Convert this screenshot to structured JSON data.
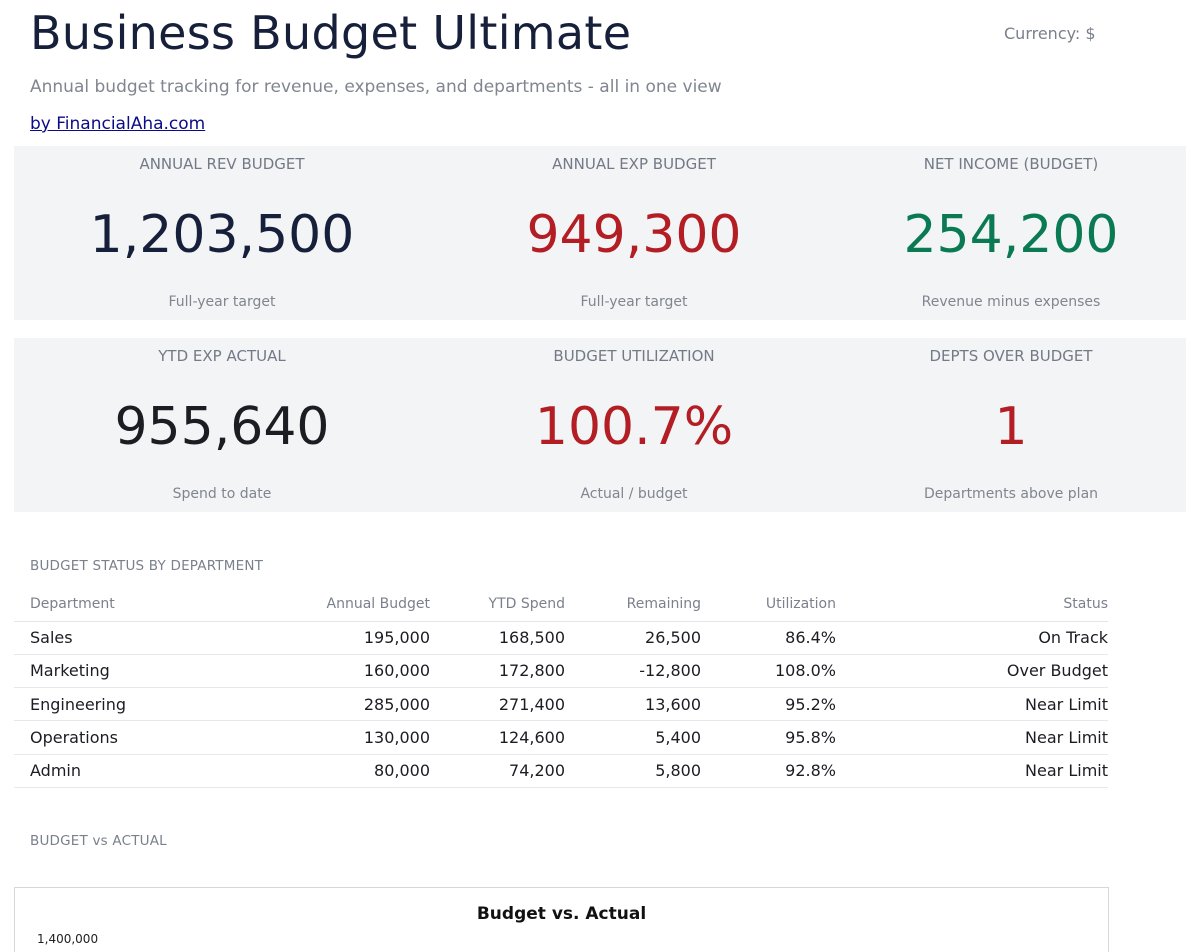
{
  "header": {
    "title": "Business Budget Ultimate",
    "currency": "Currency: $",
    "subtitle": "Annual budget tracking for revenue, expenses, and departments - all in one view",
    "brand_link": "by FinancialAha.com"
  },
  "kpis_row1": [
    {
      "label": "ANNUAL REV BUDGET",
      "value": "1,203,500",
      "note": "Full-year target",
      "color": "#16203a"
    },
    {
      "label": "ANNUAL EXP BUDGET",
      "value": "949,300",
      "note": "Full-year target",
      "color": "#b31d24"
    },
    {
      "label": "NET INCOME (BUDGET)",
      "value": "254,200",
      "note": "Revenue minus expenses",
      "color": "#0a7a52"
    }
  ],
  "kpis_row2": [
    {
      "label": "YTD EXP ACTUAL",
      "value": "955,640",
      "note": "Spend to date",
      "color": "#1b1d22"
    },
    {
      "label": "BUDGET UTILIZATION",
      "value": "100.7%",
      "note": "Actual / budget",
      "color": "#b31d24"
    },
    {
      "label": "DEPTS OVER BUDGET",
      "value": "1",
      "note": "Departments above plan",
      "color": "#b31d24"
    }
  ],
  "status_section": {
    "title": "BUDGET STATUS BY DEPARTMENT",
    "columns": [
      "Department",
      "Annual Budget",
      "YTD Spend",
      "Remaining",
      "Utilization",
      "Status"
    ],
    "rows": [
      [
        "Sales",
        "195,000",
        "168,500",
        "26,500",
        "86.4%",
        "On Track"
      ],
      [
        "Marketing",
        "160,000",
        "172,800",
        "-12,800",
        "108.0%",
        "Over Budget"
      ],
      [
        "Engineering",
        "285,000",
        "271,400",
        "13,600",
        "95.2%",
        "Near Limit"
      ],
      [
        "Operations",
        "130,000",
        "124,600",
        "5,400",
        "95.8%",
        "Near Limit"
      ],
      [
        "Admin",
        "80,000",
        "74,200",
        "5,800",
        "92.8%",
        "Near Limit"
      ]
    ]
  },
  "chart_section": {
    "title": "BUDGET vs ACTUAL",
    "chart_title": "Budget vs. Actual",
    "top_tick": "1,400,000"
  }
}
